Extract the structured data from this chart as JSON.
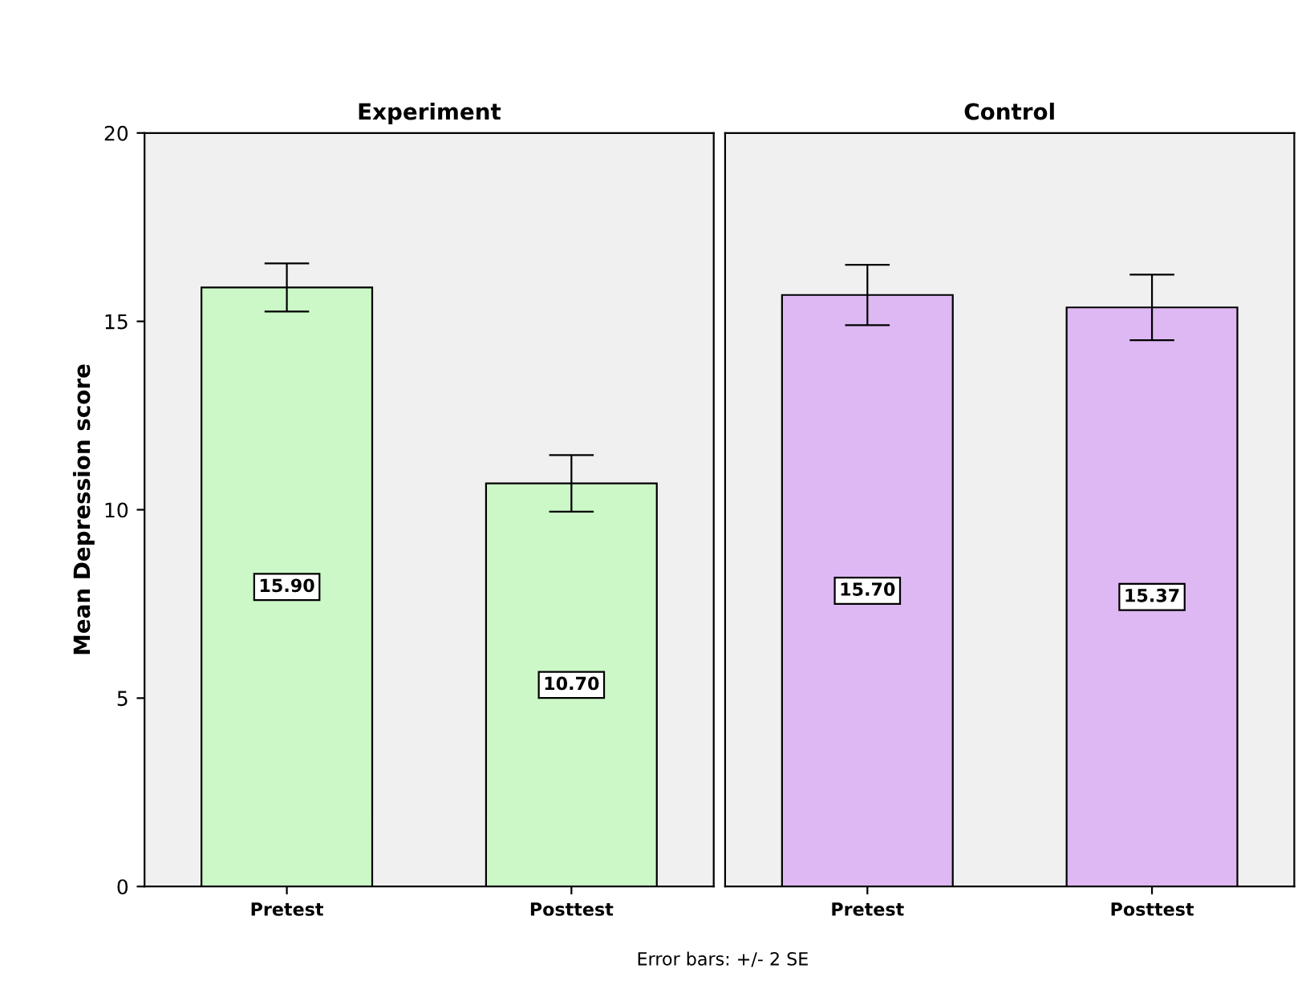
{
  "chart_data": [
    {
      "type": "bar",
      "title": "Experiment",
      "ylabel": "Mean Depression score",
      "categories": [
        "Pretest",
        "Posttest"
      ],
      "values": [
        15.9,
        10.7
      ],
      "errors": [
        0.64,
        0.75
      ],
      "value_labels": [
        "15.90",
        "10.70"
      ],
      "color": "#ccf8c8",
      "ylim": [
        0,
        20
      ],
      "yticks": [
        0,
        5,
        10,
        15,
        20
      ],
      "grid": false,
      "annotations": [
        "Error bars: +/- 2 SE"
      ]
    },
    {
      "type": "bar",
      "title": "Control",
      "categories": [
        "Pretest",
        "Posttest"
      ],
      "values": [
        15.7,
        15.37
      ],
      "errors": [
        0.8,
        0.87
      ],
      "value_labels": [
        "15.70",
        "15.37"
      ],
      "color": "#ddb8f2",
      "ylim": [
        0,
        20
      ],
      "yticks": [
        0,
        5,
        10,
        15,
        20
      ],
      "grid": false,
      "tick_labels": "x"
    }
  ]
}
